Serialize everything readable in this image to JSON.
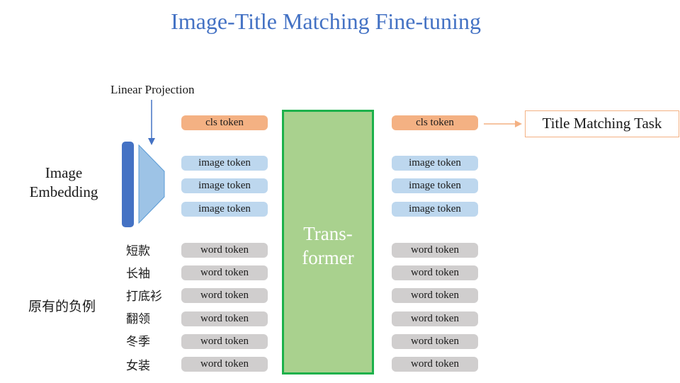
{
  "title": "Image-Title Matching Fine-tuning",
  "linear_projection": "Linear Projection",
  "image_embedding": "Image Embedding",
  "negative_examples_label": "原有的负例",
  "title_words": [
    "短款",
    "长袖",
    "打底衫",
    "翻领",
    "冬季",
    "女装"
  ],
  "tokens": {
    "cls": "cls token",
    "image": "image token",
    "word": "word token"
  },
  "transformer": "Trans-\nformer",
  "task": "Title Matching Task",
  "colors": {
    "title": "#4472c4",
    "cls_token": "#f4b183",
    "image_token": "#bdd7ee",
    "word_token": "#d0cece",
    "transformer_fill": "#a9d18e",
    "transformer_border": "#1db14b",
    "embedding_bar": "#4472c4"
  }
}
